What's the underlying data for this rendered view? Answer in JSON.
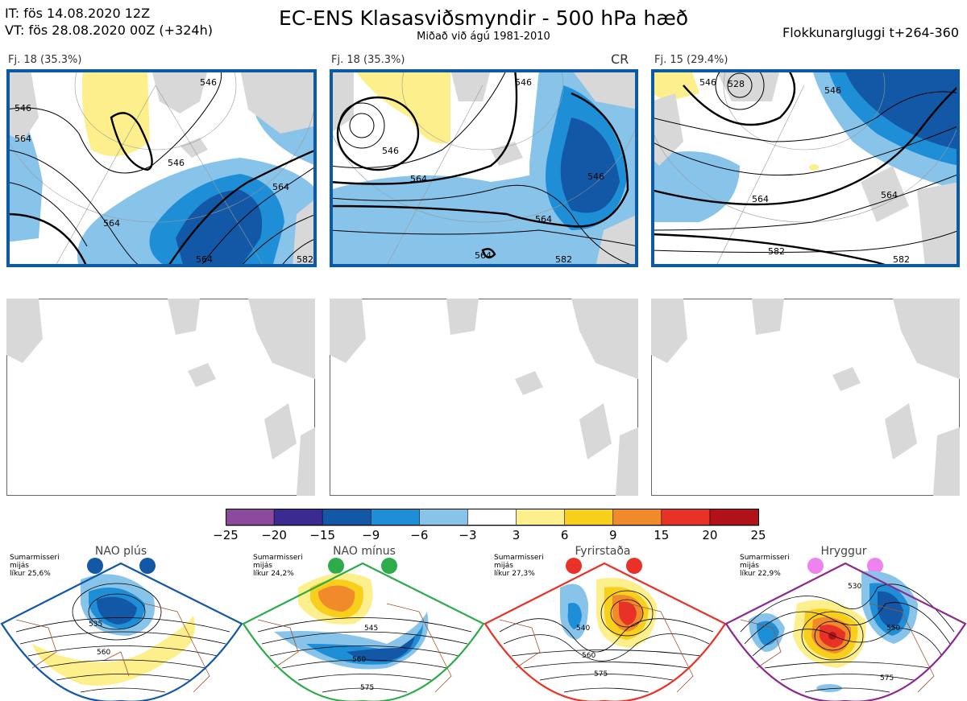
{
  "header": {
    "it_line": "IT: fös 14.08.2020 12Z",
    "vt_line": "VT: fös 28.08.2020 00Z  (+324h)",
    "title": "EC-ENS Klasasviðsmyndir - 500 hPa hæð",
    "subtitle": "Miðað við ágú 1981-2010",
    "window": "Flokkunargluggi t+264-360"
  },
  "clusters": [
    {
      "label": "Fj. 18 (35.3%)",
      "flag": "",
      "contours": [
        "546",
        "564",
        "546",
        "564",
        "564",
        "582",
        "546",
        "564"
      ]
    },
    {
      "label": "Fj. 18 (35.3%)",
      "flag": "CR",
      "contours": [
        "546",
        "546",
        "546",
        "564",
        "564",
        "564",
        "582"
      ]
    },
    {
      "label": "Fj. 15 (29.4%)",
      "flag": "",
      "contours": [
        "528",
        "546",
        "546",
        "564",
        "564",
        "582",
        "582"
      ]
    }
  ],
  "colorbar": {
    "ticks": [
      "−25",
      "−20",
      "−15",
      "−9",
      "−6",
      "−3",
      "3",
      "6",
      "9",
      "15",
      "20",
      "25"
    ],
    "colors": [
      "#8b4a9c",
      "#3b2a8f",
      "#1358a6",
      "#1e8fd6",
      "#88c3ea",
      "#ffffff",
      "#fdf08c",
      "#f8cf1c",
      "#f18a2a",
      "#e83228",
      "#b01217"
    ]
  },
  "regimes": [
    {
      "name": "NAO plús",
      "season": "Sumarmisseri",
      "note": "mijás",
      "likur": "líkur 25,6%",
      "dot_color": "#1358a6",
      "frame_color": "#1358a6",
      "contours": [
        "535",
        "560"
      ]
    },
    {
      "name": "NAO mínus",
      "season": "Sumarmisseri",
      "note": "mijás",
      "likur": "líkur 24,2%",
      "dot_color": "#2eab4a",
      "frame_color": "#2eab4a",
      "contours": [
        "545",
        "560",
        "575"
      ]
    },
    {
      "name": "Fyrirstaða",
      "season": "Sumarmisseri",
      "note": "mijás",
      "likur": "líkur 27,3%",
      "dot_color": "#e83228",
      "frame_color": "#e83228",
      "contours": [
        "540",
        "560",
        "575"
      ]
    },
    {
      "name": "Hryggur",
      "season": "Sumarmisseri",
      "note": "mijás",
      "likur": "líkur 22,9%",
      "dot_color": "#ee82ee",
      "frame_color": "#8b2a8f",
      "contours": [
        "530",
        "550",
        "575"
      ]
    }
  ]
}
